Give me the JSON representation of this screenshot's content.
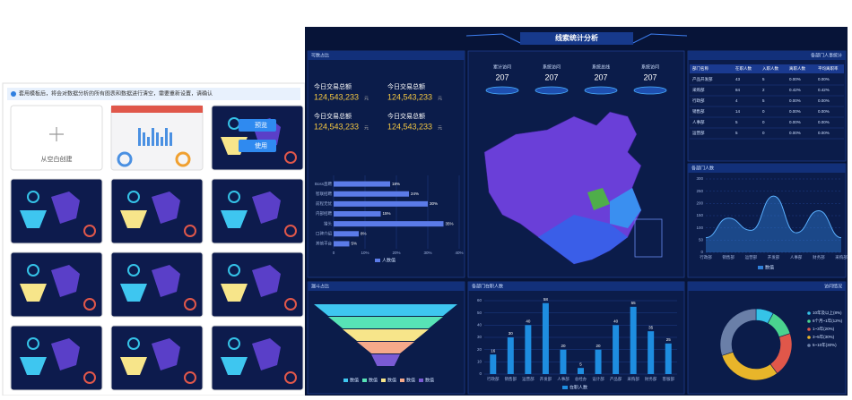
{
  "template_panel": {
    "notice": "套用模板后，将会对数据分析的所有图表和数据进行清空，需要重新设置，请确认",
    "blank_label": "从空白创建",
    "preview": "预览",
    "use": "使用"
  },
  "dashboard": {
    "title": "线索统计分析",
    "kpi_panel": {
      "title": "可数占比",
      "items": [
        {
          "label": "今日交易总额",
          "value": "124,543,233",
          "unit": "元"
        },
        {
          "label": "今日交易总额",
          "value": "124,543,233",
          "unit": "元"
        },
        {
          "label": "今日交易总额",
          "value": "124,543,233",
          "unit": "元"
        },
        {
          "label": "今日交易总额",
          "value": "124,543,233",
          "unit": "元"
        }
      ]
    },
    "stats": [
      {
        "label": "累计访问",
        "value": 207
      },
      {
        "label": "系统访问",
        "value": 207
      },
      {
        "label": "系统总线",
        "value": 207
      },
      {
        "label": "系统访问",
        "value": 207
      }
    ],
    "channel_chart": {
      "type": "bar",
      "orientation": "horizontal",
      "categories": [
        "Boss直聘",
        "智联招聘",
        "前程无忧",
        "内部招聘",
        "猎头",
        "口碑介绍",
        "其他平台"
      ],
      "values": [
        18,
        24,
        30,
        15,
        35,
        8,
        5
      ],
      "value_labels": [
        "18%",
        "24%",
        "30%",
        "15%",
        "35%",
        "8%",
        "5%"
      ],
      "xlim": [
        0,
        40
      ],
      "xticks": [
        0,
        {
          "value": 10,
          "label": "10%"
        },
        {
          "value": 20,
          "label": "20%"
        },
        {
          "value": 30,
          "label": "30%"
        },
        {
          "value": 40,
          "label": "40%"
        }
      ],
      "legend": "人数值",
      "color": "#5b7be8"
    },
    "dept_table": {
      "title": "各部门人事统计",
      "columns": [
        "部门名称",
        "在职人数",
        "入职人数",
        "离职人数",
        "平均离职率"
      ],
      "rows": [
        [
          "产品开发部",
          "43",
          "5",
          "0.00%",
          "0.00%"
        ],
        [
          "采购部",
          "84",
          "2",
          "0.42%",
          "0.42%"
        ],
        [
          "行政部",
          "4",
          "5",
          "0.00%",
          "0.00%"
        ],
        [
          "销售部",
          "14",
          "0",
          "0.00%",
          "0.00%"
        ],
        [
          "人事部",
          "5",
          "0",
          "0.00%",
          "0.00%"
        ],
        [
          "运营部",
          "5",
          "0",
          "0.00%",
          "0.00%"
        ]
      ]
    },
    "dept_area": {
      "type": "area",
      "title": "各部门人数",
      "categories": [
        "行政部",
        "销售部",
        "运营部",
        "开发部",
        "人事部",
        "财务部",
        "采购部"
      ],
      "values": [
        60,
        140,
        90,
        230,
        80,
        170,
        60
      ],
      "ylim": [
        0,
        300
      ],
      "yticks": [
        0,
        50,
        100,
        150,
        200,
        250,
        300
      ],
      "legend": "数值",
      "color": "#2f7fd8"
    },
    "funnel": {
      "type": "funnel",
      "title": "漏斗占比",
      "values": [
        100,
        80,
        60,
        40,
        20
      ],
      "legend": [
        "数值",
        "数值",
        "数值",
        "数值",
        "数值"
      ],
      "colors": [
        "#3ec6f0",
        "#57e3b6",
        "#f7e58a",
        "#f5a98a",
        "#7a5bd4"
      ]
    },
    "dept_bar": {
      "type": "bar",
      "title": "各部门在职人数",
      "categories": [
        "行政部",
        "销售部",
        "运营部",
        "开发部",
        "人事部",
        "总经办",
        "设计部",
        "产品部",
        "采购部",
        "财务部",
        "客服部"
      ],
      "values": [
        16,
        30,
        40,
        58,
        20,
        5,
        20,
        40,
        55,
        35,
        25
      ],
      "ylim": [
        0,
        60
      ],
      "yticks": [
        0,
        10,
        20,
        30,
        40,
        50,
        60
      ],
      "legend": "在职人数",
      "color": "#1e8de0"
    },
    "donut": {
      "type": "pie",
      "title": "访问情况",
      "categories": [
        "10年及以上(8%)",
        "6个月~1年(12%)",
        "1~3年(20%)",
        "3~5年(30%)",
        "5~10年(30%)"
      ],
      "values": [
        8,
        12,
        20,
        30,
        30
      ],
      "colors": [
        "#35c3e8",
        "#4ad38f",
        "#e0574a",
        "#e8b52a",
        "#6a7fa8"
      ]
    }
  }
}
